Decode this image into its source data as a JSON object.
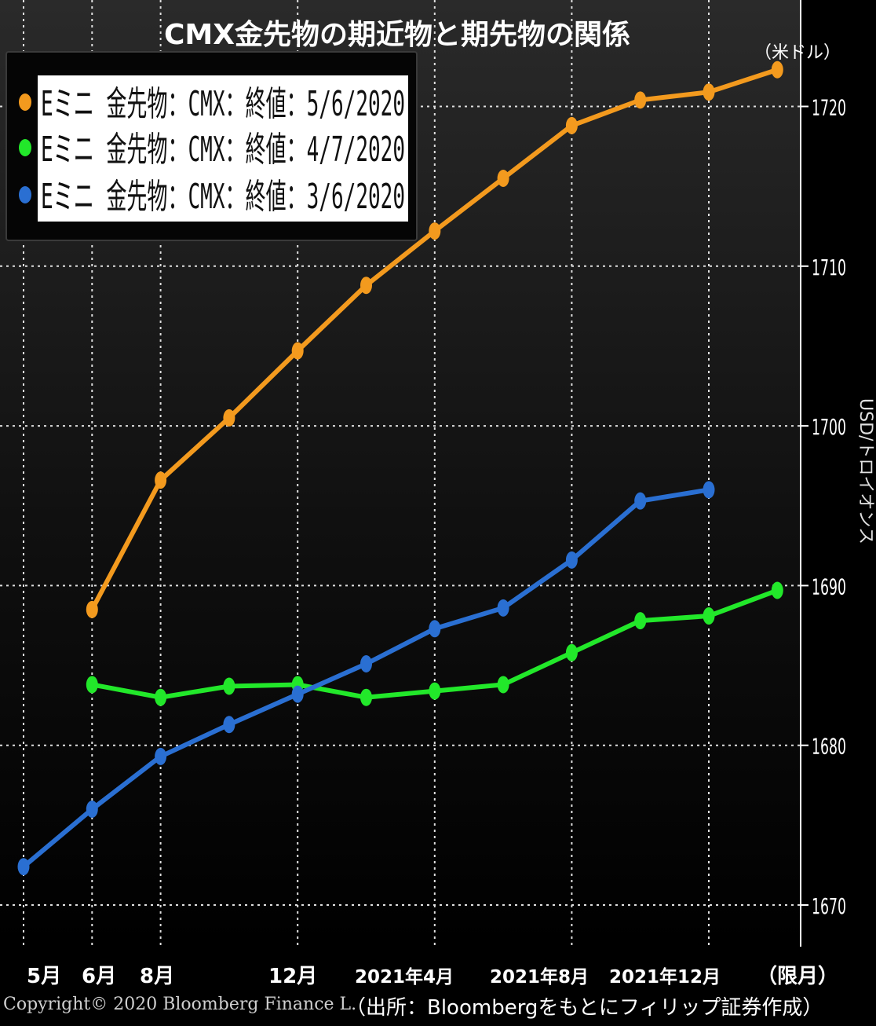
{
  "title": "CMX金先物の期近物と期先物の関係",
  "unit_label": "（米ドル）",
  "axis_title": "USD/トロイオンス",
  "copyright": "Copyright© 2020 Bloomberg Finance L.",
  "source": "（出所：Bloombergをもとにフィリップ証券作成）",
  "x_axis_labels": [
    "5月",
    "6月",
    "8月",
    "12月",
    "2021年4月",
    "2021年8月",
    "2021年12月",
    "（限月）"
  ],
  "colors": {
    "orange": "#f39a1e",
    "green": "#22e82a",
    "blue": "#2a6fd2",
    "grid": "#e0e0e0"
  },
  "chart_data": {
    "type": "line",
    "x_count": 12,
    "ylim": [
      1668,
      1734
    ],
    "yticks": [
      1670,
      1680,
      1690,
      1700,
      1710,
      1720
    ],
    "grid": true,
    "legend_position": "top-left",
    "series": [
      {
        "name": "Eミニ 金先物：CMX：終値：5/6/2020",
        "color": "#f39a1e",
        "values": [
          null,
          1688.5,
          1696.6,
          1700.5,
          1704.7,
          1708.8,
          1712.2,
          1715.5,
          1718.8,
          1720.4,
          1720.9,
          1722.3
        ]
      },
      {
        "name": "Eミニ 金先物：CMX：終値：4/7/2020",
        "color": "#22e82a",
        "values": [
          null,
          1683.8,
          1683.0,
          1683.7,
          1683.8,
          1683.0,
          1683.4,
          1683.8,
          1685.8,
          1687.8,
          1688.1,
          1689.7
        ]
      },
      {
        "name": "Eミニ 金先物：CMX：終値：3/6/2020",
        "color": "#2a6fd2",
        "values": [
          1672.4,
          1676.0,
          1679.3,
          1681.3,
          1683.2,
          1685.1,
          1687.3,
          1688.6,
          1691.6,
          1695.3,
          1696.0,
          null
        ]
      }
    ]
  }
}
